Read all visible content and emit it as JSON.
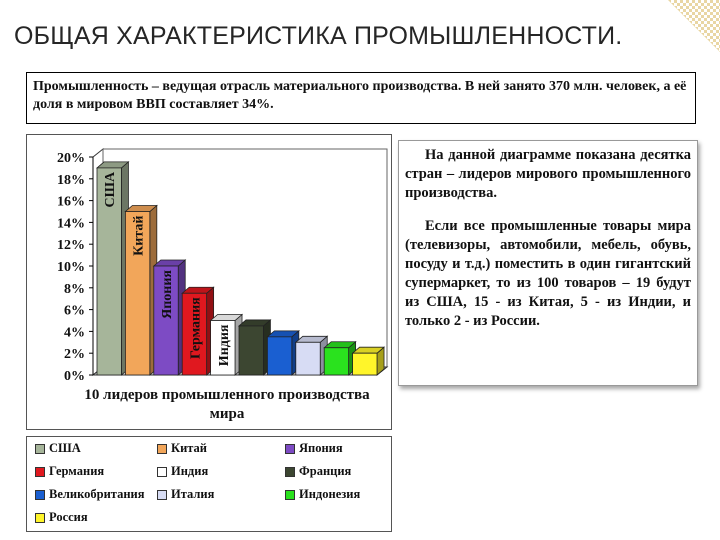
{
  "title": "ОБЩАЯ ХАРАКТЕРИСТИКА ПРОМЫШЛЕННОСТИ.",
  "intro": "Промышленность – ведущая отрасль материального производства. В ней занято 370 млн. человек, а её доля в мировом ВВП составляет 34%.",
  "description": {
    "p1": "На данной диаграмме показана десятка стран – лидеров мирового промышленного производства.",
    "p2": "Если все промышленные товары мира (телевизоры, автомобили, мебель, обувь, посуду и т.д.) поместить в один гигантский супермаркет, то из 100 товаров – 19 будут из США, 15 - из Китая, 5 - из Индии, и только 2 - из России."
  },
  "chart_data": {
    "type": "bar",
    "title": "",
    "xlabel": "10 лидеров промышленного производства мира",
    "ylabel": "",
    "ylim": [
      0,
      20
    ],
    "y_ticks": [
      "0%",
      "2%",
      "4%",
      "6%",
      "8%",
      "10%",
      "12%",
      "14%",
      "16%",
      "18%",
      "20%"
    ],
    "categories": [
      "США",
      "Китай",
      "Япония",
      "Германия",
      "Индия",
      "Франция",
      "Великобритания",
      "Италия",
      "Индонезия",
      "Россия"
    ],
    "values": [
      19,
      15,
      10,
      7.5,
      5,
      4.5,
      3.5,
      3,
      2.5,
      2
    ],
    "bar_labels": [
      "США",
      "Китай",
      "Япония",
      "Германия",
      "Индия",
      "",
      "",
      "",
      "",
      ""
    ],
    "colors": [
      "#a6b59a",
      "#f2a65a",
      "#7d4bc4",
      "#e0181f",
      "#ffffff",
      "#3c4631",
      "#1a5fd1",
      "#d7dcf4",
      "#2ae21e",
      "#fff52a"
    ],
    "grid": false,
    "legend_position": "bottom"
  }
}
